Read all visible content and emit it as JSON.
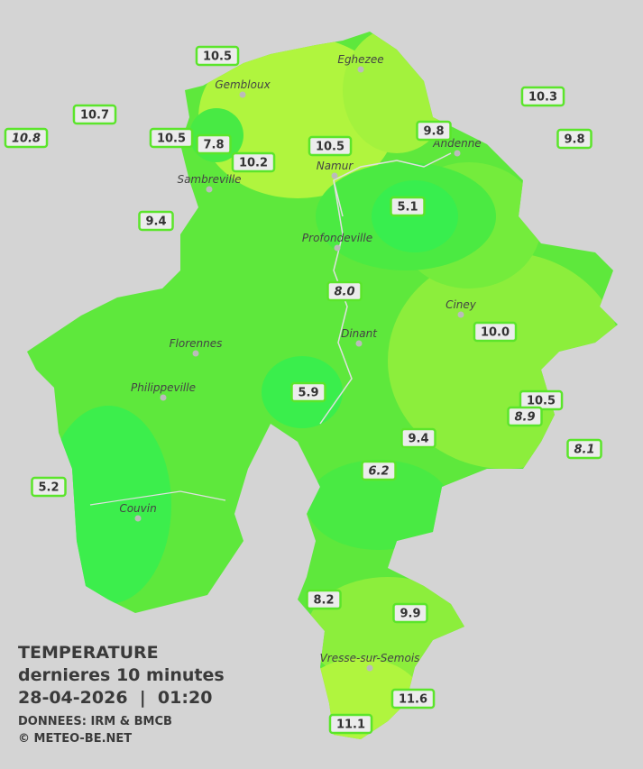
{
  "legend": {
    "title": "TEMPERATURE",
    "subtitle": "dernieres 10 minutes",
    "datetime": "28-04-2026  |  01:20",
    "source": "DONNEES: IRM & BMCB",
    "copyright": "© METEO-BE.NET"
  },
  "cities": [
    {
      "name": "Eghezee"
    },
    {
      "name": "Gembloux"
    },
    {
      "name": "Andenne"
    },
    {
      "name": "Namur"
    },
    {
      "name": "Sambreville"
    },
    {
      "name": "Profondeville"
    },
    {
      "name": "Ciney"
    },
    {
      "name": "Florennes"
    },
    {
      "name": "Dinant"
    },
    {
      "name": "Philippeville"
    },
    {
      "name": "Couvin"
    },
    {
      "name": "Vresse-sur-Semois"
    }
  ],
  "readings": [
    {
      "label": "10.5",
      "italic": false
    },
    {
      "label": "10.7",
      "italic": false
    },
    {
      "label": "10.8",
      "italic": true
    },
    {
      "label": "10.5",
      "italic": false
    },
    {
      "label": "7.8",
      "italic": false
    },
    {
      "label": "10.2",
      "italic": false
    },
    {
      "label": "10.5",
      "italic": false
    },
    {
      "label": "9.8",
      "italic": false
    },
    {
      "label": "10.3",
      "italic": false
    },
    {
      "label": "9.8",
      "italic": false
    },
    {
      "label": "9.4",
      "italic": false
    },
    {
      "label": "5.1",
      "italic": false
    },
    {
      "label": "8.0",
      "italic": true
    },
    {
      "label": "10.0",
      "italic": false
    },
    {
      "label": "5.9",
      "italic": false
    },
    {
      "label": "10.5",
      "italic": false
    },
    {
      "label": "8.9",
      "italic": true
    },
    {
      "label": "9.4",
      "italic": false
    },
    {
      "label": "6.2",
      "italic": true
    },
    {
      "label": "8.1",
      "italic": true
    },
    {
      "label": "5.2",
      "italic": false
    },
    {
      "label": "8.2",
      "italic": false
    },
    {
      "label": "9.9",
      "italic": false
    },
    {
      "label": "11.6",
      "italic": false
    },
    {
      "label": "11.1",
      "italic": false
    }
  ]
}
